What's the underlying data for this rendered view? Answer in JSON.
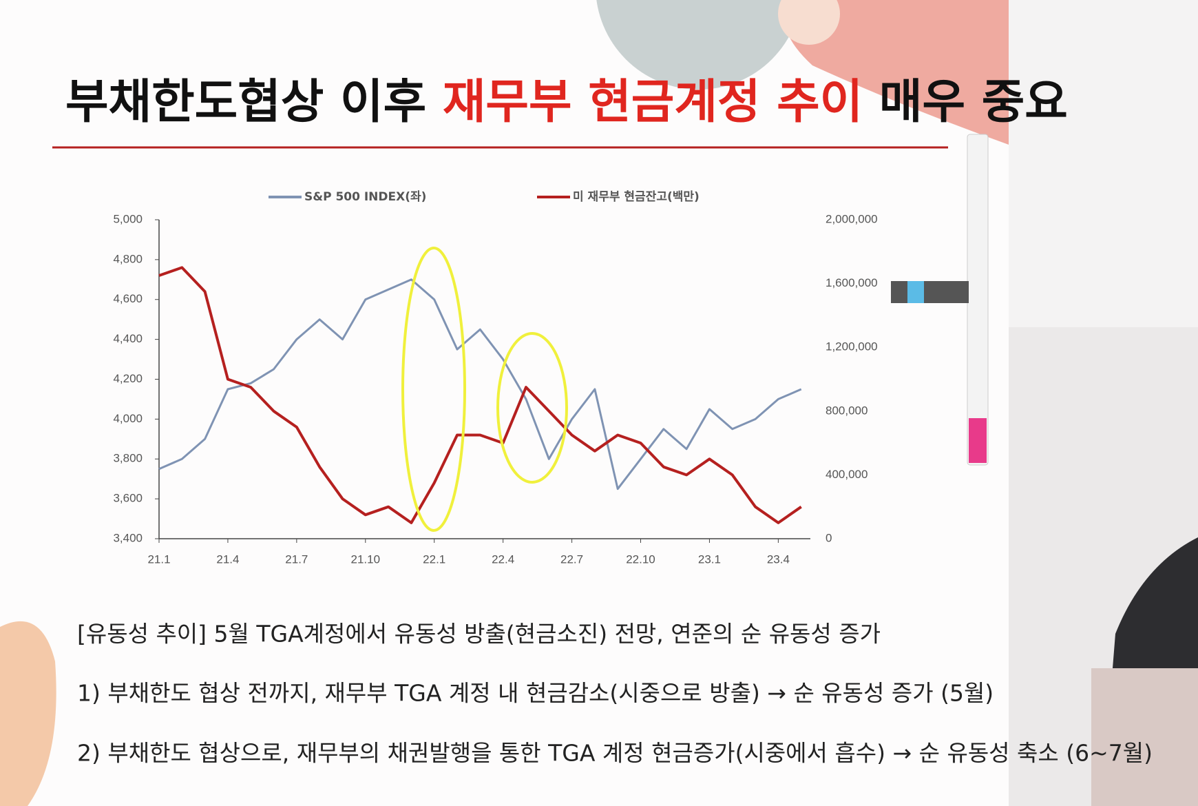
{
  "slide": {
    "title": [
      "부채한도협상 이후 ",
      "재무부 현금계정 추이",
      " 매우 중요"
    ],
    "notes": [
      "[유동성 추이] 5월 TGA계정에서 유동성 방출(현금소진) 전망, 연준의 순 유동성 증가",
      "1)  부채한도 협상 전까지, 재무부 TGA 계정 내 현금감소(시중으로 방출) → 순 유동성 증가 (5월)",
      "2)  부채한도 협상으로, 재무부의 채권발행을 통한 TGA 계정 현금증가(시중에서 흡수) → 순 유동성 축소 (6~7월)"
    ]
  },
  "chart_data": {
    "type": "line",
    "categories": [
      "21.1",
      null,
      null,
      "21.4",
      null,
      null,
      "21.7",
      null,
      null,
      "21.10",
      null,
      null,
      "22.1",
      null,
      null,
      "22.4",
      null,
      null,
      "22.7",
      null,
      null,
      "22.10",
      null,
      null,
      "23.1",
      null,
      null,
      "23.4",
      null
    ],
    "series": [
      {
        "name": "S&P 500 INDEX(좌)",
        "color": "#7f93b3",
        "values": [
          3750,
          3800,
          3900,
          4150,
          4180,
          4250,
          4400,
          4500,
          4400,
          4600,
          4650,
          4700,
          4600,
          4350,
          4450,
          4300,
          4100,
          3800,
          4000,
          4150,
          3650,
          3800,
          3950,
          3850,
          4050,
          3950,
          4000,
          4100,
          4150
        ]
      },
      {
        "name": "미 재무부 현금잔고(백만)",
        "color": "#b5201f",
        "axis": "y2",
        "values": [
          1650000,
          1700000,
          1550000,
          1000000,
          950000,
          800000,
          700000,
          450000,
          250000,
          150000,
          200000,
          100000,
          350000,
          650000,
          650000,
          600000,
          950000,
          800000,
          650000,
          550000,
          650000,
          600000,
          450000,
          400000,
          500000,
          400000,
          200000,
          100000,
          200000
        ]
      }
    ],
    "ylim": [
      3400,
      5000
    ],
    "yticks": [
      {
        "value": 3400,
        "label": "3,400"
      },
      {
        "value": 3600,
        "label": "3,600"
      },
      {
        "value": 3800,
        "label": "3,800"
      },
      {
        "value": 4000,
        "label": "4,000"
      },
      {
        "value": 4200,
        "label": "4,200"
      },
      {
        "value": 4400,
        "label": "4,400"
      },
      {
        "value": 4600,
        "label": "4,600"
      },
      {
        "value": 4800,
        "label": "4,800"
      },
      {
        "value": 5000,
        "label": "5,000"
      }
    ],
    "y2lim": [
      0,
      2000000
    ],
    "y2ticks": [
      0,
      {
        "value": 400000,
        "label": "400,000"
      },
      {
        "value": 800000,
        "label": "800,000"
      },
      {
        "value": 1200000,
        "label": "1,200,000"
      },
      {
        "value": 1600000,
        "label": "1,600,000"
      },
      {
        "value": 2000000,
        "label": "2,000,000"
      }
    ],
    "legend": "top"
  }
}
